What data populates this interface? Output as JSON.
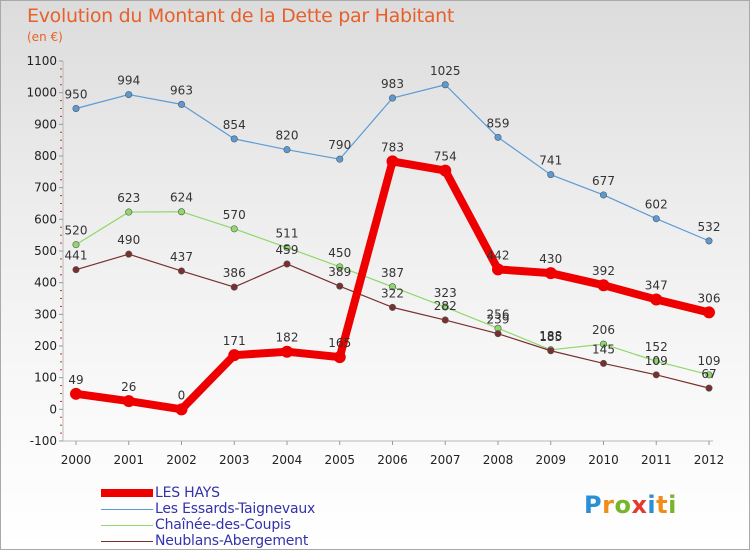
{
  "header": {
    "title": "Evolution du Montant de la Dette par Habitant",
    "subtitle": "(en €)"
  },
  "brand": {
    "logo_letters": [
      "P",
      "r",
      "o",
      "x",
      "i",
      "t",
      "i"
    ],
    "logo_colors": [
      "#2a8fd6",
      "#f08c1a",
      "#79b52b",
      "#e53a2f",
      "#2a8fd6",
      "#f08c1a",
      "#79b52b"
    ]
  },
  "chart_data": {
    "type": "line",
    "title": "Evolution du Montant de la Dette par Habitant",
    "subtitle": "(en €)",
    "xlabel": "",
    "ylabel": "",
    "x": [
      "2000",
      "2001",
      "2002",
      "2003",
      "2004",
      "2005",
      "2006",
      "2007",
      "2008",
      "2009",
      "2010",
      "2011",
      "2012"
    ],
    "ylim": [
      -100,
      1100
    ],
    "yticks": [
      -100,
      0,
      100,
      200,
      300,
      400,
      500,
      600,
      700,
      800,
      900,
      1000,
      1100
    ],
    "grid": false,
    "legend_position": "bottom-left",
    "series": [
      {
        "name": "LES HAYS",
        "color": "#ee0000",
        "values": [
          49,
          26,
          0,
          171,
          182,
          165,
          783,
          754,
          442,
          430,
          392,
          347,
          306
        ]
      },
      {
        "name": "Les Essards-Taignevaux",
        "color": "#5b9bd5",
        "values": [
          950,
          994,
          963,
          854,
          820,
          790,
          983,
          1025,
          859,
          741,
          677,
          602,
          532
        ]
      },
      {
        "name": "Chaînée-des-Coupis",
        "color": "#90d86a",
        "values": [
          520,
          623,
          624,
          570,
          511,
          450,
          387,
          323,
          256,
          188,
          206,
          152,
          109
        ]
      },
      {
        "name": "Neublans-Abergement",
        "color": "#7a2f2f",
        "values": [
          441,
          490,
          437,
          386,
          459,
          389,
          322,
          282,
          239,
          185,
          145,
          109,
          67
        ]
      }
    ]
  }
}
